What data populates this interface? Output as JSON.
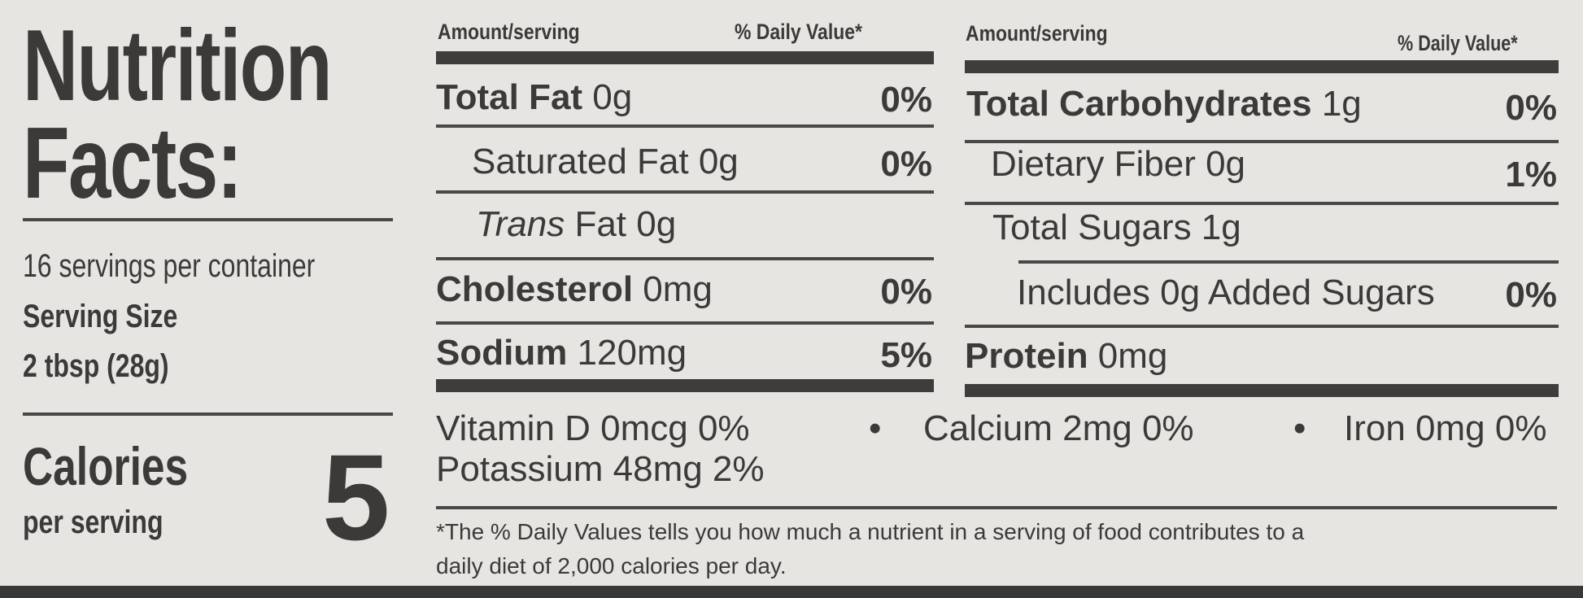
{
  "title": {
    "line1": "Nutrition",
    "line2": "Facts:"
  },
  "servings": {
    "per_container": "16 servings per container",
    "size_label": "Serving Size",
    "size_value": "2 tbsp (28g)"
  },
  "calories": {
    "label": "Calories",
    "sub": "per serving",
    "value": "5"
  },
  "headers": {
    "amount": "Amount/serving",
    "dv": "% Daily Value*"
  },
  "left_rows": [
    {
      "name": "Total Fat",
      "amount": " 0g",
      "dv": "0%"
    },
    {
      "name": "Saturated Fat 0g",
      "amount": "",
      "dv": "0%"
    },
    {
      "name": "Trans",
      "amount": " Fat 0g",
      "dv": ""
    },
    {
      "name": "Cholesterol",
      "amount": " 0mg",
      "dv": "0%"
    },
    {
      "name": "Sodium",
      "amount": " 120mg",
      "dv": "5%"
    }
  ],
  "right_rows": [
    {
      "name": "Total Carbohydrates",
      "amount": " 1g",
      "dv": "0%"
    },
    {
      "name": "Dietary Fiber 0g",
      "amount": "",
      "dv": "1%"
    },
    {
      "name": "Total Sugars 1g",
      "amount": "",
      "dv": ""
    },
    {
      "name": "Includes 0g Added Sugars",
      "amount": "",
      "dv": "0%"
    },
    {
      "name": "Protein",
      "amount": " 0mg",
      "dv": ""
    }
  ],
  "micros": {
    "vitamin_d": "Vitamin D 0mcg 0%",
    "calcium": "Calcium 2mg 0%",
    "iron": "Iron 0mg 0%",
    "potassium": "Potassium 48mg 2%",
    "bullet": "•"
  },
  "footnote": {
    "line1": "*The % Daily Values tells you how much a nutrient in a serving of food contributes to a",
    "line2": "daily diet of 2,000 calories per day."
  }
}
